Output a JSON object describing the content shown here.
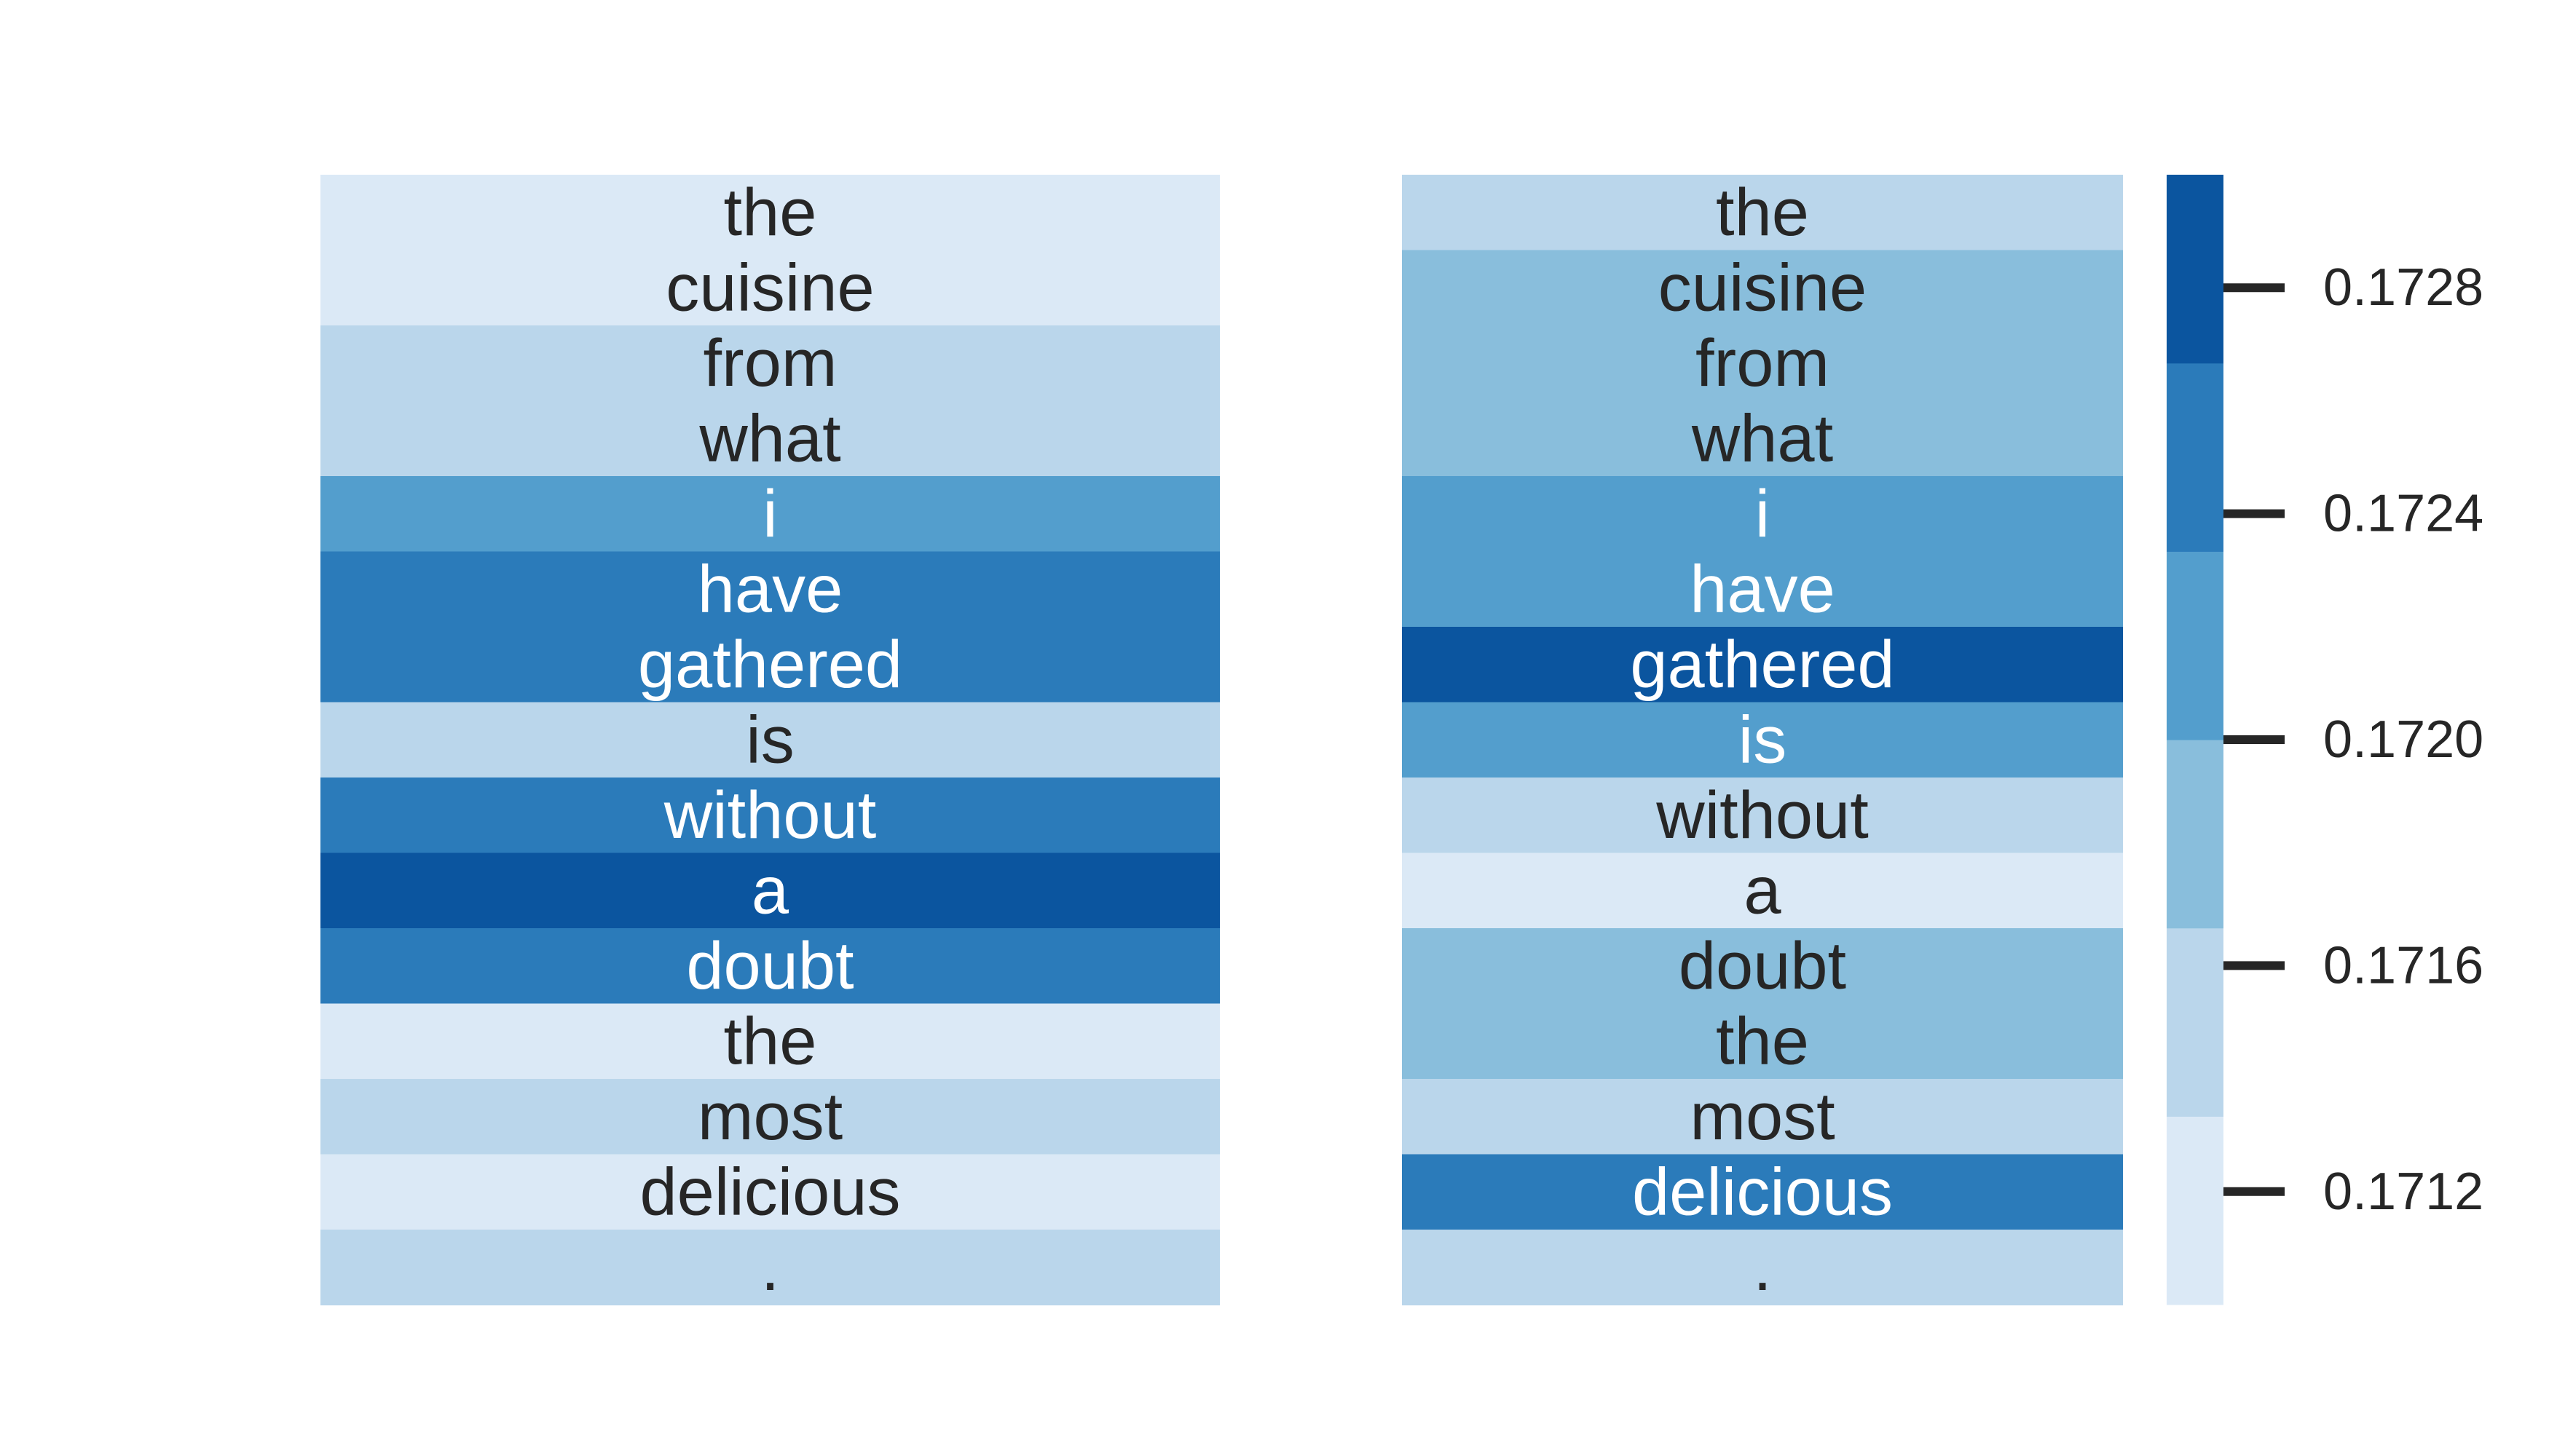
{
  "chart_data": {
    "type": "heatmap",
    "tokens": [
      "the",
      "cuisine",
      "from",
      "what",
      "i",
      "have",
      "gathered",
      "is",
      "without",
      "a",
      "doubt",
      "the",
      "most",
      "delicious",
      "."
    ],
    "panels": [
      {
        "values": [
          0.1712,
          0.1712,
          0.1716,
          0.1716,
          0.1722,
          0.1726,
          0.1726,
          0.1716,
          0.1726,
          0.1729,
          0.1726,
          0.1712,
          0.1716,
          0.1712,
          0.1716
        ]
      },
      {
        "values": [
          0.1716,
          0.1719,
          0.1719,
          0.1719,
          0.1722,
          0.1722,
          0.1729,
          0.1722,
          0.1716,
          0.1712,
          0.1719,
          0.1719,
          0.1716,
          0.1726,
          0.1716
        ]
      }
    ],
    "colorbar": {
      "ticks": [
        0.1712,
        0.1716,
        0.172,
        0.1724,
        0.1728
      ],
      "tick_labels": [
        "0.1712",
        "0.1716",
        "0.1720",
        "0.1724",
        "0.1728"
      ],
      "range": [
        0.171,
        0.173
      ]
    },
    "palette": [
      "#dbe9f6",
      "#bad6eb",
      "#89bedc",
      "#539ecd",
      "#2b7bba",
      "#0b559f"
    ],
    "text_colors": {
      "light_cell": "#ffffff",
      "dark_cell": "#262626"
    }
  }
}
